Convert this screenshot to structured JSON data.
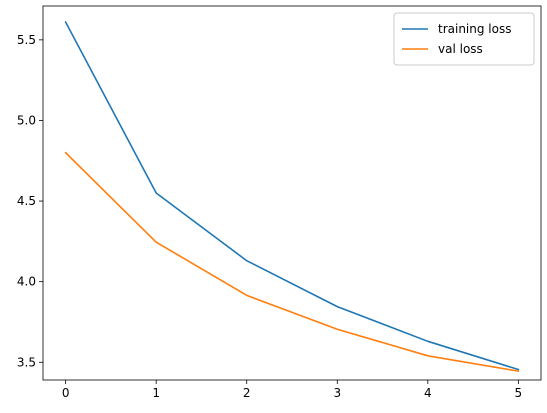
{
  "chart_data": {
    "type": "line",
    "title": "",
    "xlabel": "",
    "ylabel": "",
    "x": [
      0,
      1,
      2,
      3,
      4,
      5
    ],
    "xlim": [
      -0.25,
      5.25
    ],
    "ylim": [
      3.39,
      5.71
    ],
    "xticks": [
      0,
      1,
      2,
      3,
      4,
      5
    ],
    "yticks": [
      3.5,
      4.0,
      4.5,
      5.0,
      5.5
    ],
    "ytick_labels": [
      "3.5",
      "4.0",
      "4.5",
      "5.0",
      "5.5"
    ],
    "grid": false,
    "legend_position": "top-right",
    "series": [
      {
        "name": "training loss",
        "color": "#1f77b4",
        "values": [
          5.61,
          4.55,
          4.13,
          3.845,
          3.63,
          3.455
        ]
      },
      {
        "name": "val loss",
        "color": "#ff7f0e",
        "values": [
          4.8,
          4.245,
          3.915,
          3.705,
          3.54,
          3.445
        ]
      }
    ]
  }
}
